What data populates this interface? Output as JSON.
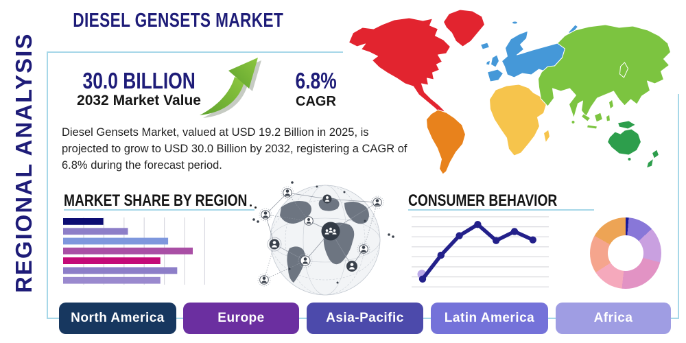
{
  "title": "DIESEL GENSETS MARKET",
  "side_label": "REGIONAL ANALYSIS",
  "stats": {
    "market_value": "30.0 BILLION",
    "market_value_caption": "2032 Market Value",
    "cagr_value": "6.8%",
    "cagr_caption": "CAGR"
  },
  "description": "Diesel Gensets Market, valued at USD 19.2 Billion in 2025, is projected to grow to USD 30.0 Billion by 2032, registering a CAGR of 6.8% during the forecast period.",
  "colors": {
    "navy": "#1e1c78",
    "box_border": "#a6d7e8",
    "underline": "#a6d7e8",
    "arrow_green_light": "#8dc63f",
    "arrow_green_dark": "#5fa32e",
    "arrow_shadow": "#b3bab0"
  },
  "map": {
    "regions": [
      {
        "name": "north-america",
        "color": "#e2242f"
      },
      {
        "name": "south-america",
        "color": "#e8821c"
      },
      {
        "name": "europe",
        "color": "#4598d8"
      },
      {
        "name": "africa",
        "color": "#f6c44c"
      },
      {
        "name": "asia",
        "color": "#7cc440"
      },
      {
        "name": "oceania",
        "color": "#2d9e4c"
      }
    ]
  },
  "region_buttons": [
    {
      "label": "North America",
      "color": "#17375f"
    },
    {
      "label": "Europe",
      "color": "#6b2fa0"
    },
    {
      "label": "Asia-Pacific",
      "color": "#4c4aab"
    },
    {
      "label": "Latin America",
      "color": "#7472d9"
    },
    {
      "label": "Africa",
      "color": "#9f9de3"
    }
  ],
  "chart_data": [
    {
      "type": "bar",
      "title": "MARKET SHARE BY REGION",
      "orientation": "horizontal",
      "values": [
        31,
        50,
        81,
        100,
        75,
        88,
        75
      ],
      "unit": "relative share (max bar = 100, no axis labels shown)",
      "colors": [
        "#0c0c72",
        "#8d7ec8",
        "#7e97dd",
        "#a94fa5",
        "#c40a78",
        "#8d7ec8",
        "#9a89ce"
      ],
      "grid": "vertical gridlines, no tick labels",
      "xlim": [
        0,
        110
      ]
    },
    {
      "type": "line",
      "title": "CONSUMER BEHAVIOR",
      "x": [
        1,
        2,
        3,
        4,
        5,
        6,
        7
      ],
      "values": [
        11,
        45,
        73,
        89,
        66,
        79,
        67
      ],
      "unit": "relative index 0-100 (no axis labels shown)",
      "line_color": "#23208a",
      "marker": "circle",
      "highlight_dot_color": "#b3a0e6",
      "grid": "8 horizontal gridlines, no tick labels",
      "ylim": [
        0,
        100
      ]
    },
    {
      "type": "pie",
      "variant": "donut",
      "title": "",
      "values": [
        2.5,
        11.7,
        16.1,
        22.5,
        14.2,
        17.2,
        15.8
      ],
      "unit": "percent (no labels shown)",
      "start_angle_deg": -4,
      "colors": [
        "#1a1a99",
        "#8877d8",
        "#c9a0e0",
        "#e293c4",
        "#f5a9bc",
        "#f5a58d",
        "#eda455"
      ]
    }
  ]
}
